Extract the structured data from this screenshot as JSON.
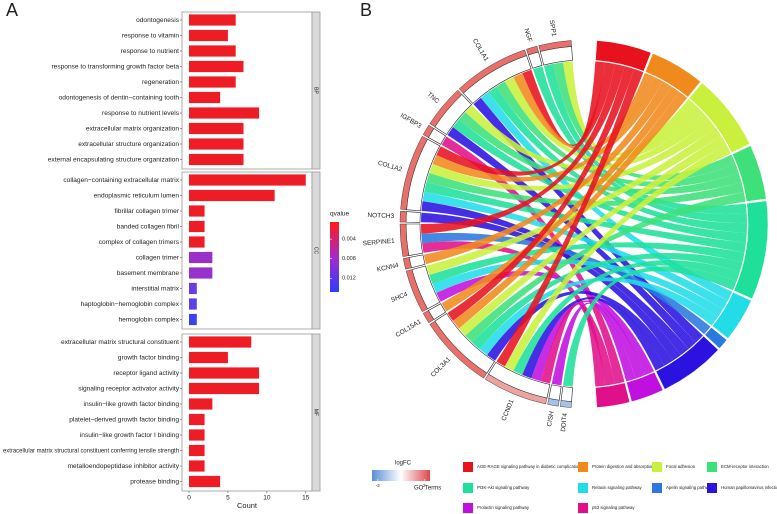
{
  "panel_labels": [
    "A",
    "B"
  ],
  "chart_data": [
    {
      "type": "facet-bar",
      "orientation": "horizontal",
      "xlabel": "Count",
      "xlim": [
        -0.9,
        15.8
      ],
      "xticks": [
        0,
        5,
        10,
        15
      ],
      "facets": [
        {
          "name": "BP",
          "categories": [
            "odontogenesis",
            "response to vitamin",
            "response to nutrient",
            "response to transforming growth factor beta",
            "regeneration",
            "odontogenesis of dentin−containing tooth",
            "response to nutrient levels",
            "extracellular matrix organization",
            "extracellular structure organization",
            "external encapsulating structure organization"
          ],
          "values": [
            6,
            5,
            6,
            7,
            6,
            4,
            9,
            7,
            7,
            7
          ],
          "colors": [
            "#ee1c25",
            "#ee1c25",
            "#ee1c25",
            "#ee1c25",
            "#ee1c25",
            "#ee1c25",
            "#ee1c25",
            "#ee1c25",
            "#ee1c25",
            "#ee1c25"
          ]
        },
        {
          "name": "CC",
          "categories": [
            "collagen−containing extracellular matrix",
            "endoplasmic reticulum lumen",
            "fibrillar collagen trimer",
            "banded collagen fibril",
            "complex of collagen trimers",
            "collagen trimer",
            "basement membrane",
            "interstitial matrix",
            "haptoglobin−hemoglobin complex",
            "hemoglobin complex"
          ],
          "values": [
            15,
            11,
            2,
            2,
            2,
            3,
            3,
            1,
            1,
            1
          ],
          "colors": [
            "#ee1c25",
            "#ee1c25",
            "#ee1c25",
            "#ee1c25",
            "#ee1c25",
            "#9b30c8",
            "#9533cc",
            "#6a3de0",
            "#5c40e6",
            "#3b42f2"
          ]
        },
        {
          "name": "MF",
          "categories": [
            "extracellular matrix structural constituent",
            "growth factor binding",
            "receptor ligand activity",
            "signaling receptor activator activity",
            "insulin−like growth factor binding",
            "platelet−derived growth factor binding",
            "insulin−like growth factor I binding",
            "extracellular matrix structural constituent conferring tensile strength",
            "metalloendopeptidase inhibitor activity",
            "protease binding"
          ],
          "values": [
            8,
            5,
            9,
            9,
            3,
            2,
            2,
            2,
            2,
            4
          ],
          "colors": [
            "#ee1c25",
            "#ee1c25",
            "#ee1c25",
            "#ee1c25",
            "#ee1c25",
            "#ee1c25",
            "#ee1c25",
            "#ee1c25",
            "#ee1c25",
            "#ee1c25"
          ]
        }
      ],
      "colorbar": {
        "title": "qvalue",
        "lim": [
          0.0005,
          0.0148
        ],
        "ticks": [
          0.004,
          0.008,
          0.012
        ],
        "colors": [
          "#ff1a1a",
          "#a52ac8",
          "#2e3cff"
        ]
      }
    },
    {
      "type": "chord",
      "genes": [
        "SPP1",
        "NGF",
        "COL1A1",
        "TNC",
        "IGFBP3",
        "COL1A2",
        "NOTCH3",
        "SERPINE1",
        "KCNN4",
        "SHC4",
        "COL15A1",
        "COL3A1",
        "CCND1",
        "CISH",
        "DDIT4"
      ],
      "gene_colors": [
        "#e8706c",
        "#e8706c",
        "#e8706c",
        "#e8706c",
        "#e8706c",
        "#e8706c",
        "#e8706c",
        "#e8706c",
        "#e8706c",
        "#e8706c",
        "#e8706c",
        "#e8706c",
        "#eba3a0",
        "#a9c0e8",
        "#a9c0e8"
      ],
      "pathways": [
        {
          "name": "AGE-RAGE signaling pathway in diabetic complications",
          "color": "#e8121f"
        },
        {
          "name": "Protein digestion and absorption",
          "color": "#f08a1c"
        },
        {
          "name": "Focal adhesion",
          "color": "#c8f03c"
        },
        {
          "name": "ECM-receptor interaction",
          "color": "#3ee07a"
        },
        {
          "name": "PI3K-Akt signaling pathway",
          "color": "#1ee09a"
        },
        {
          "name": "Relaxin signaling pathway",
          "color": "#22dde8"
        },
        {
          "name": "Apelin signaling pathway",
          "color": "#2a78e0"
        },
        {
          "name": "Human papillomavirus infection",
          "color": "#2a12e0"
        },
        {
          "name": "Prolactin signaling pathway",
          "color": "#c010e0"
        },
        {
          "name": "p53 signaling pathway",
          "color": "#e0108a"
        }
      ],
      "links": [
        {
          "gene": 0,
          "pathway": 2
        },
        {
          "gene": 0,
          "pathway": 3
        },
        {
          "gene": 0,
          "pathway": 4
        },
        {
          "gene": 1,
          "pathway": 4
        },
        {
          "gene": 2,
          "pathway": 0
        },
        {
          "gene": 2,
          "pathway": 1
        },
        {
          "gene": 2,
          "pathway": 2
        },
        {
          "gene": 2,
          "pathway": 3
        },
        {
          "gene": 2,
          "pathway": 4
        },
        {
          "gene": 2,
          "pathway": 5
        },
        {
          "gene": 2,
          "pathway": 7
        },
        {
          "gene": 3,
          "pathway": 2
        },
        {
          "gene": 3,
          "pathway": 3
        },
        {
          "gene": 3,
          "pathway": 4
        },
        {
          "gene": 3,
          "pathway": 7
        },
        {
          "gene": 4,
          "pathway": 9
        },
        {
          "gene": 5,
          "pathway": 0
        },
        {
          "gene": 5,
          "pathway": 1
        },
        {
          "gene": 5,
          "pathway": 2
        },
        {
          "gene": 5,
          "pathway": 3
        },
        {
          "gene": 5,
          "pathway": 4
        },
        {
          "gene": 5,
          "pathway": 5
        },
        {
          "gene": 5,
          "pathway": 7
        },
        {
          "gene": 6,
          "pathway": 7
        },
        {
          "gene": 7,
          "pathway": 0
        },
        {
          "gene": 7,
          "pathway": 6
        },
        {
          "gene": 7,
          "pathway": 9
        },
        {
          "gene": 8,
          "pathway": 1
        },
        {
          "gene": 9,
          "pathway": 2
        },
        {
          "gene": 9,
          "pathway": 4
        },
        {
          "gene": 9,
          "pathway": 5
        },
        {
          "gene": 9,
          "pathway": 8
        },
        {
          "gene": 10,
          "pathway": 1
        },
        {
          "gene": 11,
          "pathway": 0
        },
        {
          "gene": 11,
          "pathway": 1
        },
        {
          "gene": 11,
          "pathway": 2
        },
        {
          "gene": 11,
          "pathway": 3
        },
        {
          "gene": 11,
          "pathway": 4
        },
        {
          "gene": 11,
          "pathway": 5
        },
        {
          "gene": 11,
          "pathway": 7
        },
        {
          "gene": 12,
          "pathway": 0
        },
        {
          "gene": 12,
          "pathway": 2
        },
        {
          "gene": 12,
          "pathway": 4
        },
        {
          "gene": 12,
          "pathway": 7
        },
        {
          "gene": 12,
          "pathway": 8
        },
        {
          "gene": 12,
          "pathway": 9
        },
        {
          "gene": 13,
          "pathway": 8
        },
        {
          "gene": 14,
          "pathway": 4
        }
      ],
      "legend_title": "GO Terms",
      "logfc_legend": {
        "title": "logFC",
        "lim": [
          -2.5,
          2.5
        ],
        "ticks": [
          -2,
          2
        ],
        "colors": [
          "#5b8ed6",
          "#ffffff",
          "#e0474c"
        ]
      }
    }
  ]
}
